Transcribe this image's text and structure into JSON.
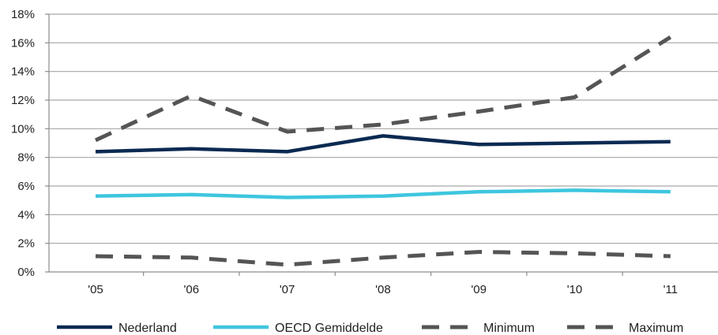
{
  "chart_data": {
    "type": "line",
    "title": "",
    "xlabel": "",
    "ylabel": "",
    "categories": [
      "'05",
      "'06",
      "'07",
      "'08",
      "'09",
      "'10",
      "'11"
    ],
    "ylim": [
      0,
      18
    ],
    "yticks": [
      0,
      2,
      4,
      6,
      8,
      10,
      12,
      14,
      16,
      18
    ],
    "ytick_labels": [
      "0%",
      "2%",
      "4%",
      "6%",
      "8%",
      "10%",
      "12%",
      "14%",
      "16%",
      "18%"
    ],
    "grid": "horizontal",
    "legend_position": "bottom",
    "series": [
      {
        "name": "Nederland",
        "values": [
          8.4,
          8.6,
          8.4,
          9.5,
          8.9,
          9.0,
          9.1
        ],
        "color": "#0b2a52",
        "style": "solid"
      },
      {
        "name": "OECD Gemiddelde",
        "values": [
          5.3,
          5.4,
          5.2,
          5.3,
          5.6,
          5.7,
          5.6
        ],
        "color": "#3ec6df",
        "style": "solid"
      },
      {
        "name": "Minimum",
        "values": [
          1.1,
          1.0,
          0.5,
          1.0,
          1.4,
          1.3,
          1.1
        ],
        "color": "#555555",
        "style": "dashed"
      },
      {
        "name": "Maximum",
        "values": [
          9.2,
          12.3,
          9.8,
          10.3,
          11.2,
          12.2,
          16.4
        ],
        "color": "#555555",
        "style": "dashed"
      }
    ]
  }
}
